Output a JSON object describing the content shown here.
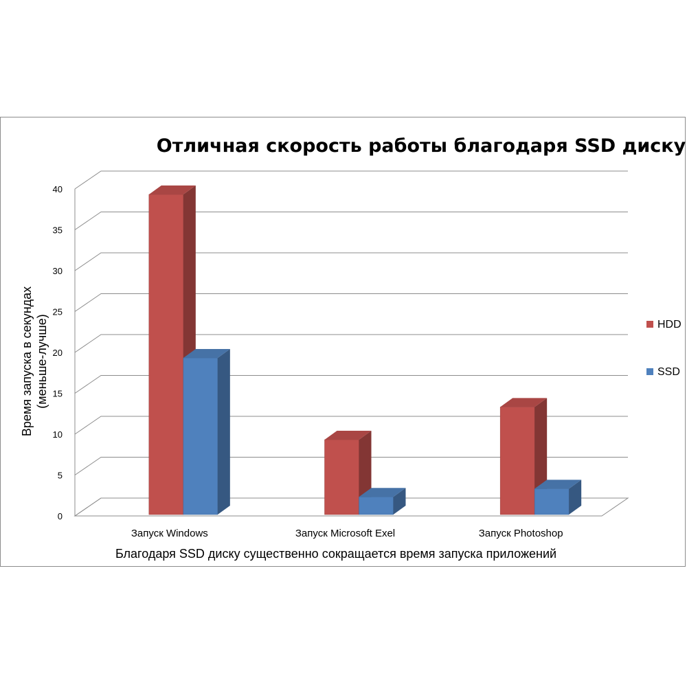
{
  "chart_data": {
    "type": "bar",
    "title": "Отличная скорость работы благодаря SSD диску",
    "xlabel": "Благодаря SSD диску существенно сокращается время запуска приложений",
    "ylabel_line1": "Время запуска в секундах",
    "ylabel_line2": "(меньше-лучше)",
    "categories": [
      "Запуск Windows",
      "Запуск Microsoft Exel",
      "Запуск Photoshop"
    ],
    "series": [
      {
        "name": "HDD",
        "values": [
          40,
          10,
          14
        ],
        "color": "#C0504D"
      },
      {
        "name": "SSD",
        "values": [
          20,
          3,
          4
        ],
        "color": "#4F81BD"
      }
    ],
    "ylim": [
      0,
      40
    ],
    "yticks": [
      0,
      5,
      10,
      15,
      20,
      25,
      30,
      35,
      40
    ],
    "grid": true,
    "legend": "right",
    "three_d": true
  }
}
